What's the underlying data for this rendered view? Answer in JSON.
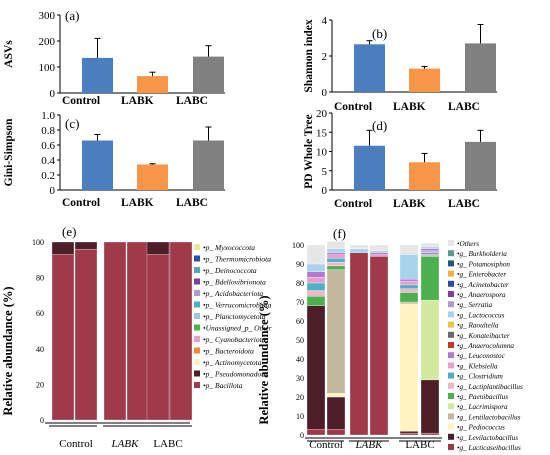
{
  "colors": {
    "control": "#4a7ebf",
    "labk": "#f79646",
    "labc": "#808080",
    "error": "#000000",
    "tick": "#555555"
  },
  "chart_data": [
    {
      "panel_label": "(a)",
      "type": "bar",
      "categories": [
        "Control",
        "LABK",
        "LABC"
      ],
      "values": [
        135,
        65,
        140
      ],
      "errors": [
        75,
        15,
        42
      ],
      "ylabel": "ASVs",
      "ylim": [
        0,
        300
      ],
      "yticks": [
        0,
        100,
        200,
        300
      ],
      "grid": false
    },
    {
      "panel_label": "(b)",
      "type": "bar",
      "categories": [
        "Control",
        "LABK",
        "LABC"
      ],
      "values": [
        2.65,
        1.3,
        2.7
      ],
      "errors": [
        0.2,
        0.12,
        1.05
      ],
      "ylabel": "Shannon index",
      "ylim": [
        0,
        4
      ],
      "yticks": [
        0,
        2,
        4
      ],
      "grid": false
    },
    {
      "panel_label": "(c)",
      "type": "bar",
      "categories": [
        "Control",
        "LABK",
        "LABC"
      ],
      "values": [
        0.66,
        0.34,
        0.66
      ],
      "errors": [
        0.08,
        0.01,
        0.18
      ],
      "ylabel": "Gini-Simpson",
      "ylim": [
        0,
        1.0
      ],
      "yticks": [
        0,
        0.2,
        0.4,
        0.6,
        0.8,
        1.0
      ],
      "ytick_labels": [
        "0",
        "0.2",
        "0.4",
        "0.6",
        "0.8",
        "1.0"
      ],
      "grid": false
    },
    {
      "panel_label": "(d)",
      "type": "bar",
      "categories": [
        "Control",
        "LABK",
        "LABC"
      ],
      "values": [
        11.5,
        7.2,
        12.5
      ],
      "errors": [
        4.0,
        2.3,
        3.0
      ],
      "ylabel": "PD Whole Tree",
      "ylim": [
        0,
        20
      ],
      "yticks": [
        0,
        5,
        10,
        15,
        20
      ],
      "grid": false
    },
    {
      "panel_label": "(e)",
      "type": "bar",
      "stacked": true,
      "ylabel": "Relative abundance (%)",
      "ylim": [
        0,
        100
      ],
      "yticks": [
        0,
        20,
        40,
        60,
        80,
        100
      ],
      "groups": [
        "Control",
        "LABK",
        "LABC"
      ],
      "group_italic": [
        false,
        true,
        false
      ],
      "legend_position": "right",
      "series": [
        {
          "name": "p_ Bacillota",
          "color": "#9e3a4a",
          "values": [
            93,
            96,
            100,
            100,
            100,
            93,
            100
          ]
        },
        {
          "name": "p_ Pseudomonadota",
          "color": "#4b1e28",
          "values": [
            7,
            4,
            0,
            0,
            0,
            7,
            0
          ]
        }
      ],
      "legend": [
        {
          "name": "p_ Myxococcota",
          "color": "#e8e8a0"
        },
        {
          "name": "p_ Thermomicrobiota",
          "color": "#2b4ea0"
        },
        {
          "name": "p_ Deinococcota",
          "color": "#5aa5b5"
        },
        {
          "name": "p_ Bdellovibrionota",
          "color": "#7b3f9e"
        },
        {
          "name": "p_ Acidobacteriota",
          "color": "#b09bc8"
        },
        {
          "name": "p_ Verrucomicrobiota",
          "color": "#4bb2c5"
        },
        {
          "name": "p_ Planctomycetota",
          "color": "#9ec8e0"
        },
        {
          "name": "Unassigned_p_ Other",
          "color": "#4caf50"
        },
        {
          "name": "p_ Cyanobacteriota",
          "color": "#e69fd0"
        },
        {
          "name": "p_ Bacteroidota",
          "color": "#f08a2c"
        },
        {
          "name": "p_ Actinomycetota",
          "color": "#fff4c2"
        },
        {
          "name": "p_ Pseudomonadota",
          "color": "#4b1e28"
        },
        {
          "name": "p_ Bacillota",
          "color": "#9e3a4a"
        }
      ]
    },
    {
      "panel_label": "(f)",
      "type": "bar",
      "stacked": true,
      "ylabel": "Relative abundance (%)",
      "ylim": [
        0,
        100
      ],
      "yticks": [
        0,
        10,
        20,
        30,
        40,
        50,
        60,
        70,
        80,
        90,
        100
      ],
      "groups": [
        "Control",
        "LABK",
        "LABC"
      ],
      "group_italic": [
        false,
        true,
        false
      ],
      "legend_position": "right",
      "series": [
        {
          "name": "g_ Lacticaseibacillus",
          "color": "#9e3a4a",
          "values": [
            3,
            3,
            96,
            94,
            1,
            1
          ]
        },
        {
          "name": "g_ Levilactobacillus",
          "color": "#4b1e28",
          "values": [
            65,
            17,
            0,
            0,
            1,
            28
          ]
        },
        {
          "name": "g_ Pediococcus",
          "color": "#fff4c2",
          "values": [
            0,
            2,
            0,
            0,
            67,
            0
          ]
        },
        {
          "name": "g_ Lentilactobacillus",
          "color": "#c2b89e",
          "values": [
            0,
            65,
            0,
            0,
            1,
            0
          ]
        },
        {
          "name": "g_ Lacrimispora",
          "color": "#d2e9a0",
          "values": [
            0,
            0,
            0,
            0,
            0,
            42
          ]
        },
        {
          "name": "g_ Paenibacillus",
          "color": "#4caf50",
          "values": [
            5,
            2,
            0,
            0,
            5,
            23
          ]
        },
        {
          "name": "g_ Lactiplantibacillus",
          "color": "#f3b6c6",
          "values": [
            3,
            2,
            0,
            0,
            2,
            1
          ]
        },
        {
          "name": "g_ Clostridium",
          "color": "#4bb2c5",
          "values": [
            4,
            2,
            0,
            0,
            2,
            1
          ]
        },
        {
          "name": "g_ Klebsiella",
          "color": "#e69fd0",
          "values": [
            3,
            2,
            0,
            1,
            2,
            1
          ]
        },
        {
          "name": "g_ Leuconostoc",
          "color": "#b27acc",
          "values": [
            3,
            1,
            0,
            1,
            1,
            1
          ]
        },
        {
          "name": "g_ Lactococcus",
          "color": "#a8d3ec",
          "values": [
            4,
            2,
            2,
            1,
            13,
            1
          ]
        },
        {
          "name": "Others",
          "color": "#e6e6e6",
          "values": [
            10,
            4,
            2,
            3,
            5,
            2
          ]
        }
      ],
      "legend": [
        {
          "name": "Others",
          "color": "#e6e6e6"
        },
        {
          "name": "g_ Burkholderia",
          "color": "#5a9c8a"
        },
        {
          "name": "g_ Potamosiphon",
          "color": "#1d5a7a"
        },
        {
          "name": "g_ Enterobacter",
          "color": "#f0b33a"
        },
        {
          "name": "g_ Acinetobacter",
          "color": "#2b4ea0"
        },
        {
          "name": "g_ Anaerospora",
          "color": "#7b3f9e"
        },
        {
          "name": "g_ Serratia",
          "color": "#b09bc8"
        },
        {
          "name": "g_ Lactococcus",
          "color": "#a8d3ec"
        },
        {
          "name": "g_ Raoultella",
          "color": "#e0c94a"
        },
        {
          "name": "g_ Konateibacter",
          "color": "#6a6a6a"
        },
        {
          "name": "g_ Anaerocolumna",
          "color": "#c0392b"
        },
        {
          "name": "g_ Leuconostoc",
          "color": "#b27acc"
        },
        {
          "name": "g_ Klebsiella",
          "color": "#e69fd0"
        },
        {
          "name": "g_ Clostridium",
          "color": "#4bb2c5"
        },
        {
          "name": "g_ Lactiplantibacillus",
          "color": "#f3b6c6"
        },
        {
          "name": "g_ Paenibacillus",
          "color": "#4caf50"
        },
        {
          "name": "g_ Lacrimispora",
          "color": "#d2e9a0"
        },
        {
          "name": "g_ Lentilactobacillus",
          "color": "#c2b89e"
        },
        {
          "name": "g_ Pediococcus",
          "color": "#fff4c2"
        },
        {
          "name": "g_ Levilactobacillus",
          "color": "#4b1e28"
        },
        {
          "name": "g_ Lacticaseibacillus",
          "color": "#9e3a4a"
        }
      ]
    }
  ]
}
